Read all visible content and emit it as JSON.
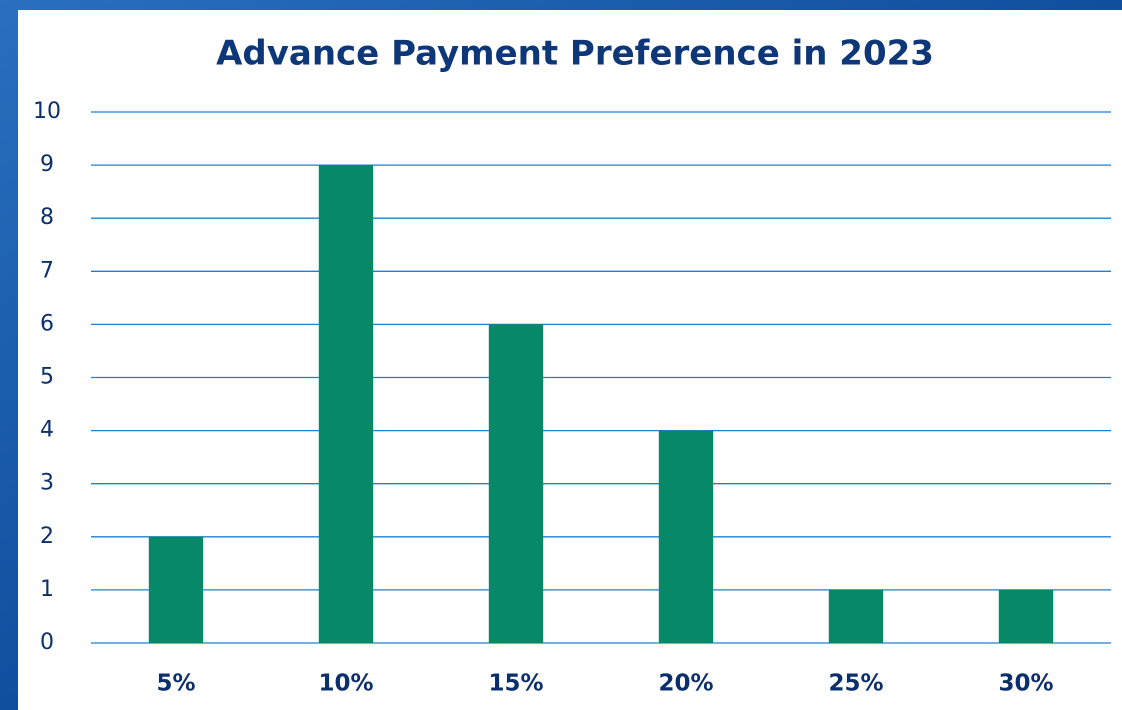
{
  "chart_data": {
    "type": "bar",
    "title": "Advance Payment Preference in 2023",
    "categories": [
      "5%",
      "10%",
      "15%",
      "20%",
      "25%",
      "30%"
    ],
    "values": [
      2,
      9,
      6,
      4,
      1,
      1
    ],
    "color": "#078866",
    "ylim": [
      0,
      10
    ],
    "yticks": [
      0,
      1,
      2,
      3,
      4,
      5,
      6,
      7,
      8,
      9,
      10
    ],
    "grid": true
  }
}
